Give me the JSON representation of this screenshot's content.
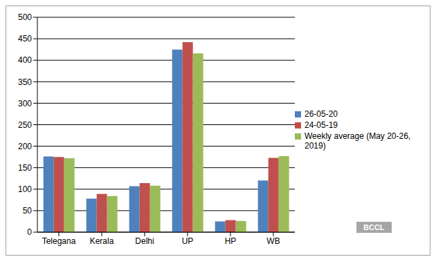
{
  "chart_data": {
    "type": "bar",
    "categories": [
      "Telegana",
      "Kerala",
      "Delhi",
      "UP",
      "HP",
      "WB"
    ],
    "series": [
      {
        "name": "26-05-20",
        "color": "#4f81bd",
        "values": [
          176,
          78,
          107,
          425,
          25,
          120
        ]
      },
      {
        "name": "24-05-19",
        "color": "#c0504d",
        "values": [
          175,
          89,
          114,
          442,
          28,
          173
        ]
      },
      {
        "name": "Weekly average (May 20-26, 2019)",
        "color": "#9bbb59",
        "values": [
          172,
          84,
          108,
          416,
          26,
          177
        ]
      }
    ],
    "ylim": [
      0,
      500
    ],
    "yticks": [
      0,
      50,
      100,
      150,
      200,
      250,
      300,
      350,
      400,
      450,
      500
    ],
    "grid": true,
    "legend": "right",
    "annotations": [
      "BCCL"
    ]
  }
}
